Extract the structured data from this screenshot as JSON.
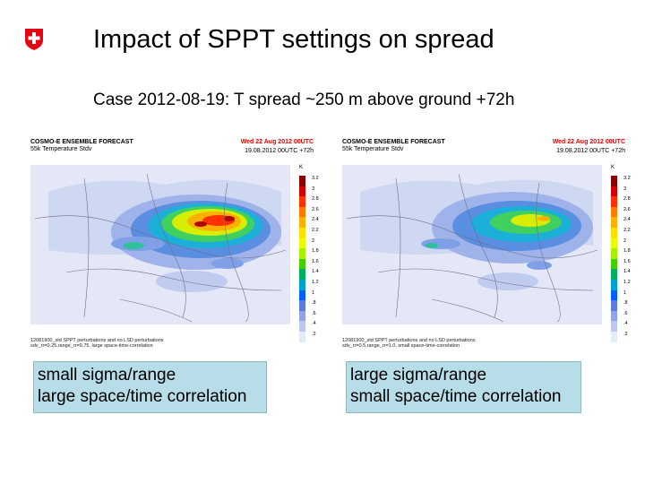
{
  "slide": {
    "title": "Impact of SPPT settings on spread",
    "subtitle": "Case 2012-08-19: T spread ~250 m above ground +72h"
  },
  "panels": [
    {
      "header_title": "COSMO-E ENSEMBLE FORECAST",
      "header_sub": "55k Temperature Stdv",
      "date": "Wed 22 Aug 2012 00UTC",
      "run": "19.08.2012 00UTC +72h",
      "unit": "K",
      "footer_line1": "12081900_std SPPT perturbations and no LSD perturbations",
      "footer_line2": "sdv_rr=0.25,range_rr=0.75, large space-time-correlation",
      "caption_line1": "small sigma/range",
      "caption_line2": "large space/time correlation",
      "intensity": "high"
    },
    {
      "header_title": "COSMO-E ENSEMBLE FORECAST",
      "header_sub": "55k Temperature Stdv",
      "date": "Wed 22 Aug 2012 00UTC",
      "run": "19.08.2012 00UTC +72h",
      "unit": "K",
      "footer_line1": "12081900_std SPPT perturbations and no LSD perturbations",
      "footer_line2": "sdv_rr=0.5,range_rr=1.0, small space-time-correlation",
      "caption_line1": "large sigma/range",
      "caption_line2": "small space/time correlation",
      "intensity": "low"
    }
  ],
  "colorbar": {
    "ticks": [
      "3.2",
      "3",
      "2.8",
      "2.6",
      "2.4",
      "2.2",
      "2",
      "1.8",
      "1.6",
      "1.4",
      "1.2",
      "1",
      ".8",
      ".6",
      ".4",
      ".2"
    ],
    "colors": [
      "#8b0000",
      "#d40000",
      "#ff3000",
      "#ff7a00",
      "#ffb000",
      "#ffe000",
      "#e8ff00",
      "#a8f000",
      "#40d000",
      "#00b060",
      "#00a0d0",
      "#0060ff",
      "#5a7ce0",
      "#8fa3e8",
      "#bcc8f0",
      "#e6ebfa"
    ]
  },
  "theme": {
    "caption_bg": "#b7dde8",
    "date_red": "#e00000",
    "swiss_red": "#e30613"
  }
}
